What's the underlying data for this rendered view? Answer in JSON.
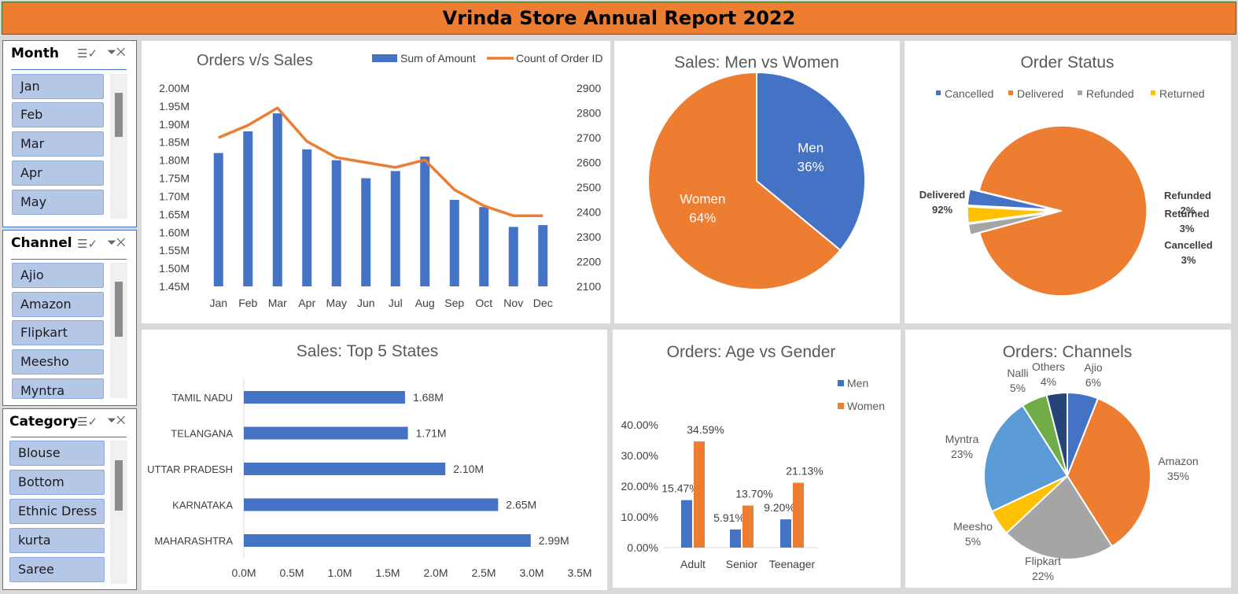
{
  "report_title": "Vrinda Store Annual Report 2022",
  "colors": {
    "blue": "#4472c4",
    "orange": "#ed7d31",
    "gray": "#a5a5a5",
    "yellow": "#ffc000",
    "lightblue": "#5b9bd5",
    "green": "#70ad47",
    "navy": "#264478",
    "title_bg": "#ed7d31"
  },
  "slicers": {
    "month": {
      "title": "Month",
      "items": [
        "Jan",
        "Feb",
        "Mar",
        "Apr",
        "May"
      ]
    },
    "channel": {
      "title": "Channel",
      "items": [
        "Ajio",
        "Amazon",
        "Flipkart",
        "Meesho",
        "Myntra"
      ]
    },
    "category": {
      "title": "Category",
      "items": [
        "Blouse",
        "Bottom",
        "Ethnic Dress",
        "kurta",
        "Saree"
      ]
    },
    "icons": [
      "multi-select-icon",
      "clear-filter-icon"
    ]
  },
  "chart_data": [
    {
      "type": "bar",
      "title": "Orders v/s Sales",
      "legend_placement": "top-right",
      "categories": [
        "Jan",
        "Feb",
        "Mar",
        "Apr",
        "May",
        "Jun",
        "Jul",
        "Aug",
        "Sep",
        "Oct",
        "Nov",
        "Dec"
      ],
      "series": [
        {
          "name": "Sum of Amount",
          "type": "bar",
          "axis": "left",
          "values": [
            1.82,
            1.88,
            1.93,
            1.83,
            1.8,
            1.75,
            1.77,
            1.81,
            1.69,
            1.67,
            1.615,
            1.62
          ]
        },
        {
          "name": "Count of Order ID",
          "type": "line",
          "axis": "right",
          "values": [
            2700,
            2750,
            2820,
            2685,
            2620,
            2600,
            2580,
            2610,
            2490,
            2425,
            2385,
            2385
          ]
        }
      ],
      "y_left_ticks": [
        "2.00M",
        "1.95M",
        "1.90M",
        "1.85M",
        "1.80M",
        "1.75M",
        "1.70M",
        "1.65M",
        "1.60M",
        "1.55M",
        "1.50M",
        "1.45M"
      ],
      "y_right_ticks": [
        "2900",
        "2800",
        "2700",
        "2600",
        "2500",
        "2400",
        "2300",
        "2200",
        "2100"
      ],
      "ylim_left": [
        1.45,
        2.0
      ],
      "ylim_right": [
        2100,
        2900
      ]
    },
    {
      "type": "pie",
      "title": "Sales: Men vs Women",
      "slices": [
        {
          "name": "Men",
          "value": 36,
          "label": "36%"
        },
        {
          "name": "Women",
          "value": 64,
          "label": "64%"
        }
      ]
    },
    {
      "type": "pie",
      "title": "Order Status",
      "legend_placement": "top",
      "legend": [
        "Cancelled",
        "Delivered",
        "Refunded",
        "Returned"
      ],
      "slices": [
        {
          "name": "Delivered",
          "value": 92,
          "label": "92%"
        },
        {
          "name": "Refunded",
          "value": 2,
          "label": "2%"
        },
        {
          "name": "Returned",
          "value": 3,
          "label": "3%"
        },
        {
          "name": "Cancelled",
          "value": 3,
          "label": "3%"
        }
      ]
    },
    {
      "type": "bar",
      "orientation": "horizontal",
      "title": "Sales: Top 5 States",
      "categories": [
        "TAMIL NADU",
        "TELANGANA",
        "UTTAR PRADESH",
        "KARNATAKA",
        "MAHARASHTRA"
      ],
      "values": [
        1.68,
        1.71,
        2.1,
        2.65,
        2.99
      ],
      "labels": [
        "1.68M",
        "1.71M",
        "2.10M",
        "2.65M",
        "2.99M"
      ],
      "x_ticks": [
        "0.0M",
        "0.5M",
        "1.0M",
        "1.5M",
        "2.0M",
        "2.5M",
        "3.0M",
        "3.5M"
      ],
      "xlim": [
        0,
        3.5
      ]
    },
    {
      "type": "bar",
      "title": "Orders: Age vs Gender",
      "legend_placement": "right",
      "categories": [
        "Adult",
        "Senior",
        "Teenager"
      ],
      "series": [
        {
          "name": "Men",
          "values": [
            15.47,
            5.91,
            9.2
          ],
          "labels": [
            "15.47%",
            "5.91%",
            "9.20%"
          ]
        },
        {
          "name": "Women",
          "values": [
            34.59,
            13.7,
            21.13
          ],
          "labels": [
            "34.59%",
            "13.70%",
            "21.13%"
          ]
        }
      ],
      "y_ticks": [
        "40.00%",
        "30.00%",
        "20.00%",
        "10.00%",
        "0.00%"
      ],
      "ylim": [
        0,
        40
      ]
    },
    {
      "type": "pie",
      "title": "Orders: Channels",
      "slices": [
        {
          "name": "Ajio",
          "value": 6,
          "label": "6%"
        },
        {
          "name": "Amazon",
          "value": 35,
          "label": "35%"
        },
        {
          "name": "Flipkart",
          "value": 22,
          "label": "22%"
        },
        {
          "name": "Meesho",
          "value": 5,
          "label": "5%"
        },
        {
          "name": "Myntra",
          "value": 23,
          "label": "23%"
        },
        {
          "name": "Nalli",
          "value": 5,
          "label": "5%"
        },
        {
          "name": "Others",
          "value": 4,
          "label": "4%"
        }
      ]
    }
  ]
}
